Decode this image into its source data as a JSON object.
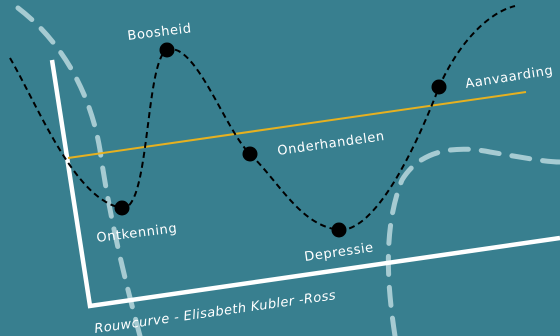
{
  "colors": {
    "background": "#387f8f",
    "axes": "#ffffff",
    "curve": "#000000",
    "trend_line": "#e6b120",
    "background_dashes": "#a6cbd2",
    "labels": "#ffffff"
  },
  "caption": "Rouwcurve - Elisabeth Kubler -Ross",
  "stages": [
    {
      "key": "ontkenning",
      "label": "Ontkenning"
    },
    {
      "key": "boosheid",
      "label": "Boosheid"
    },
    {
      "key": "onderhandelen",
      "label": "Onderhandelen"
    },
    {
      "key": "depressie",
      "label": "Depressie"
    },
    {
      "key": "aanvaarding",
      "label": "Aanvaarding"
    }
  ]
}
